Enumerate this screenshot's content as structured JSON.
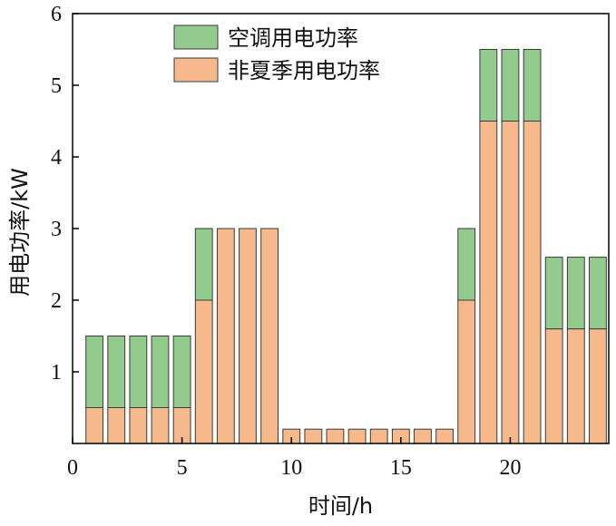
{
  "chart_data": {
    "type": "bar",
    "stacked": true,
    "x": [
      1,
      2,
      3,
      4,
      5,
      6,
      7,
      8,
      9,
      10,
      11,
      12,
      13,
      14,
      15,
      16,
      17,
      18,
      19,
      20,
      21,
      22,
      23,
      24
    ],
    "series": [
      {
        "name": "非夏季用电功率",
        "color": "#F5B98C",
        "values": [
          0.5,
          0.5,
          0.5,
          0.5,
          0.5,
          2.0,
          3.0,
          3.0,
          3.0,
          0.2,
          0.2,
          0.2,
          0.2,
          0.2,
          0.2,
          0.2,
          0.2,
          2.0,
          4.5,
          4.5,
          4.5,
          1.6,
          1.6,
          1.6
        ]
      },
      {
        "name": "空调用电功率",
        "color": "#93CA8E",
        "values": [
          1.0,
          1.0,
          1.0,
          1.0,
          1.0,
          1.0,
          0,
          0,
          0,
          0,
          0,
          0,
          0,
          0,
          0,
          0,
          0,
          1.0,
          1.0,
          1.0,
          1.0,
          1.0,
          1.0,
          1.0
        ]
      }
    ],
    "xlabel": "时间/h",
    "ylabel": "用电功率/kW",
    "xlim": [
      0,
      24.5
    ],
    "ylim": [
      0,
      6
    ],
    "xticks": [
      0,
      5,
      10,
      15,
      20
    ],
    "yticks": [
      1,
      2,
      3,
      4,
      5,
      6
    ],
    "grid": false,
    "legend_position": "top-center"
  }
}
